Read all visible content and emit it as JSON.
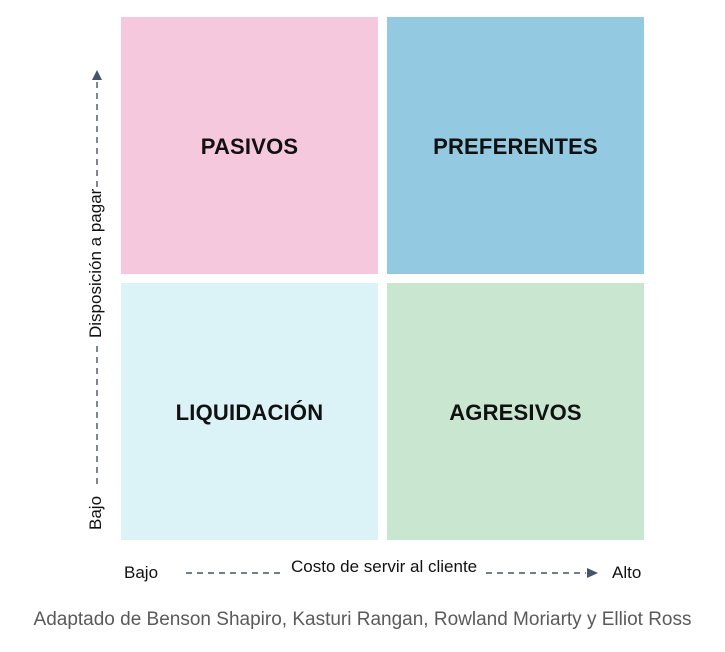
{
  "quadrants": {
    "top_left": {
      "label": "PASIVOS",
      "color": "#f6c8dd"
    },
    "top_right": {
      "label": "PREFERENTES",
      "color": "#93c9e1"
    },
    "bottom_left": {
      "label": "LIQUIDACIÓN",
      "color": "#dbf3f7"
    },
    "bottom_right": {
      "label": "AGRESIVOS",
      "color": "#c9e6d0"
    }
  },
  "x_axis": {
    "low_label": "Bajo",
    "title": "Costo de servir al cliente",
    "high_label": "Alto"
  },
  "y_axis": {
    "low_label": "Bajo",
    "title": "Disposición a pagar"
  },
  "caption": "Adaptado de Benson Shapiro, Kasturi Rangan, Rowland Moriarty y Elliot Ross",
  "colors": {
    "axis_arrow": "#44546a",
    "caption_text": "#5a5a5a"
  }
}
